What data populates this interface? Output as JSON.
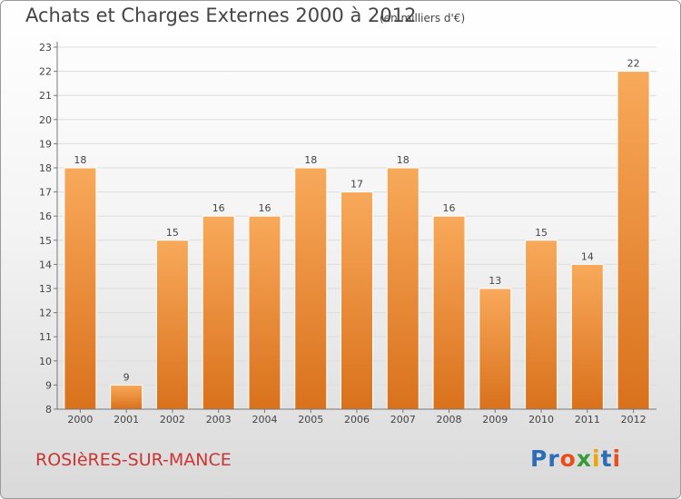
{
  "header": {
    "title": "Achats et Charges Externes 2000 à 2012",
    "subtitle": "(en milliers d'€)"
  },
  "footer": {
    "location": "ROSIèRES-SUR-MANCE",
    "logo_text": "Proxiti",
    "logo_colors": [
      "#2e6db5",
      "#2e6db5",
      "#e94e1b",
      "#3a9a3a",
      "#f0a500",
      "#2e6db5",
      "#e94e1b"
    ]
  },
  "chart_data": {
    "type": "bar",
    "categories": [
      "2000",
      "2001",
      "2002",
      "2003",
      "2004",
      "2005",
      "2006",
      "2007",
      "2008",
      "2009",
      "2010",
      "2011",
      "2012"
    ],
    "values": [
      18,
      9,
      15,
      16,
      16,
      18,
      17,
      18,
      16,
      13,
      15,
      14,
      22
    ],
    "ylim": [
      8,
      23
    ],
    "yticks": [
      8,
      9,
      10,
      11,
      12,
      13,
      14,
      15,
      16,
      17,
      18,
      19,
      20,
      21,
      22,
      23
    ],
    "grid": true,
    "bar_color_light": "#f8a95a",
    "bar_color_dark": "#d9711c",
    "grid_color": "#dddddd",
    "axis_color": "#777777",
    "text_color": "#444444"
  }
}
